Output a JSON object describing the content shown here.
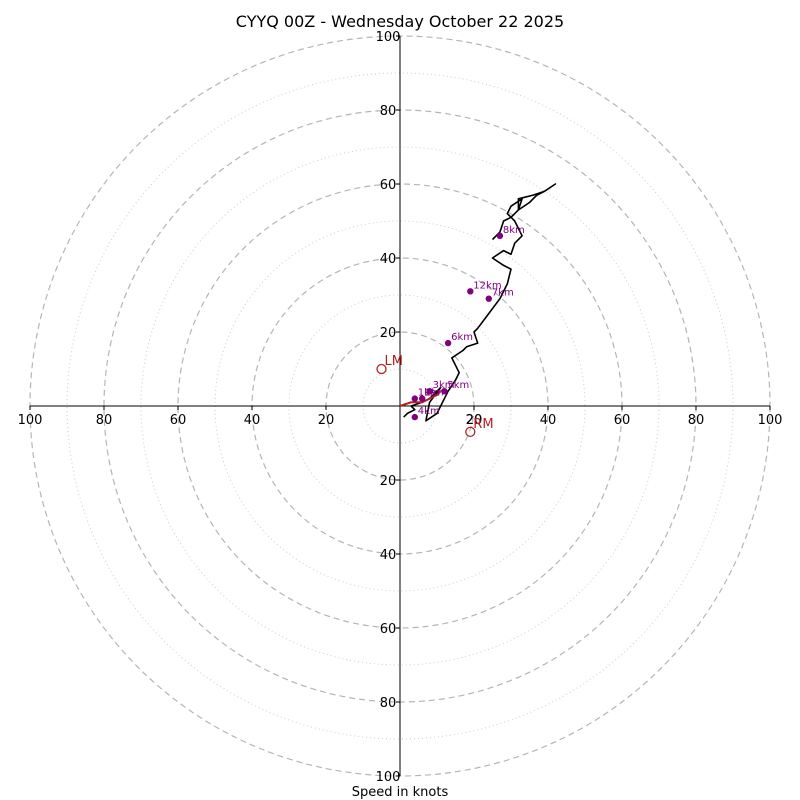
{
  "chart_data": {
    "type": "hodograph",
    "title": "CYYQ 00Z - Wednesday October 22 2025",
    "xlabel": "Speed in knots",
    "xlim": [
      -100,
      100
    ],
    "ylim": [
      -100,
      100
    ],
    "rings_major": [
      20,
      40,
      60,
      80,
      100
    ],
    "rings_minor": [
      10,
      30,
      50,
      70,
      90
    ],
    "tick_values": [
      100,
      80,
      60,
      40,
      20
    ],
    "center_tick": "20",
    "grid": true,
    "hodograph_trace": {
      "color": "#000000",
      "u": [
        1,
        2,
        4,
        3,
        6,
        8,
        9,
        10,
        11,
        8,
        7,
        10,
        13,
        15,
        16,
        14,
        17,
        18,
        21,
        20,
        21,
        24,
        27,
        29,
        30,
        28,
        25,
        28,
        30,
        31,
        33,
        31,
        29,
        30,
        33,
        32,
        35,
        37,
        39,
        42,
        39,
        36,
        32,
        32,
        30,
        28,
        27,
        25
      ],
      "v": [
        -3,
        -2,
        -1,
        0,
        1,
        2,
        3,
        4,
        5,
        1,
        -4,
        -2,
        4,
        7,
        9,
        13,
        15,
        16,
        17,
        20,
        21,
        25,
        29,
        33,
        37,
        38,
        40,
        42,
        41,
        44,
        46,
        50,
        52,
        54,
        56,
        53,
        55,
        57,
        58,
        60,
        58,
        57,
        56,
        53,
        51,
        50,
        47,
        45
      ]
    },
    "height_markers": {
      "color": "#800080",
      "points": [
        {
          "label": "1km",
          "u": 4,
          "v": 2
        },
        {
          "label": "2km",
          "u": 6,
          "v": 2
        },
        {
          "label": "3km",
          "u": 8,
          "v": 4
        },
        {
          "label": "4km",
          "u": 4,
          "v": -3
        },
        {
          "label": "5km",
          "u": 12,
          "v": 4
        },
        {
          "label": "6km",
          "u": 13,
          "v": 17
        },
        {
          "label": "7km",
          "u": 24,
          "v": 29
        },
        {
          "label": "8km",
          "u": 27,
          "v": 46
        },
        {
          "label": "12km",
          "u": 19,
          "v": 31
        }
      ]
    },
    "low_level_trace": {
      "color": "#b22222",
      "u": [
        0,
        3,
        6,
        8,
        10,
        11
      ],
      "v": [
        0,
        1,
        1,
        2,
        3,
        4
      ]
    },
    "storm_motion": {
      "color": "#b22222",
      "points": [
        {
          "label": "LM",
          "u": -5,
          "v": 10
        },
        {
          "label": "RM",
          "u": 19,
          "v": -7
        }
      ]
    }
  }
}
